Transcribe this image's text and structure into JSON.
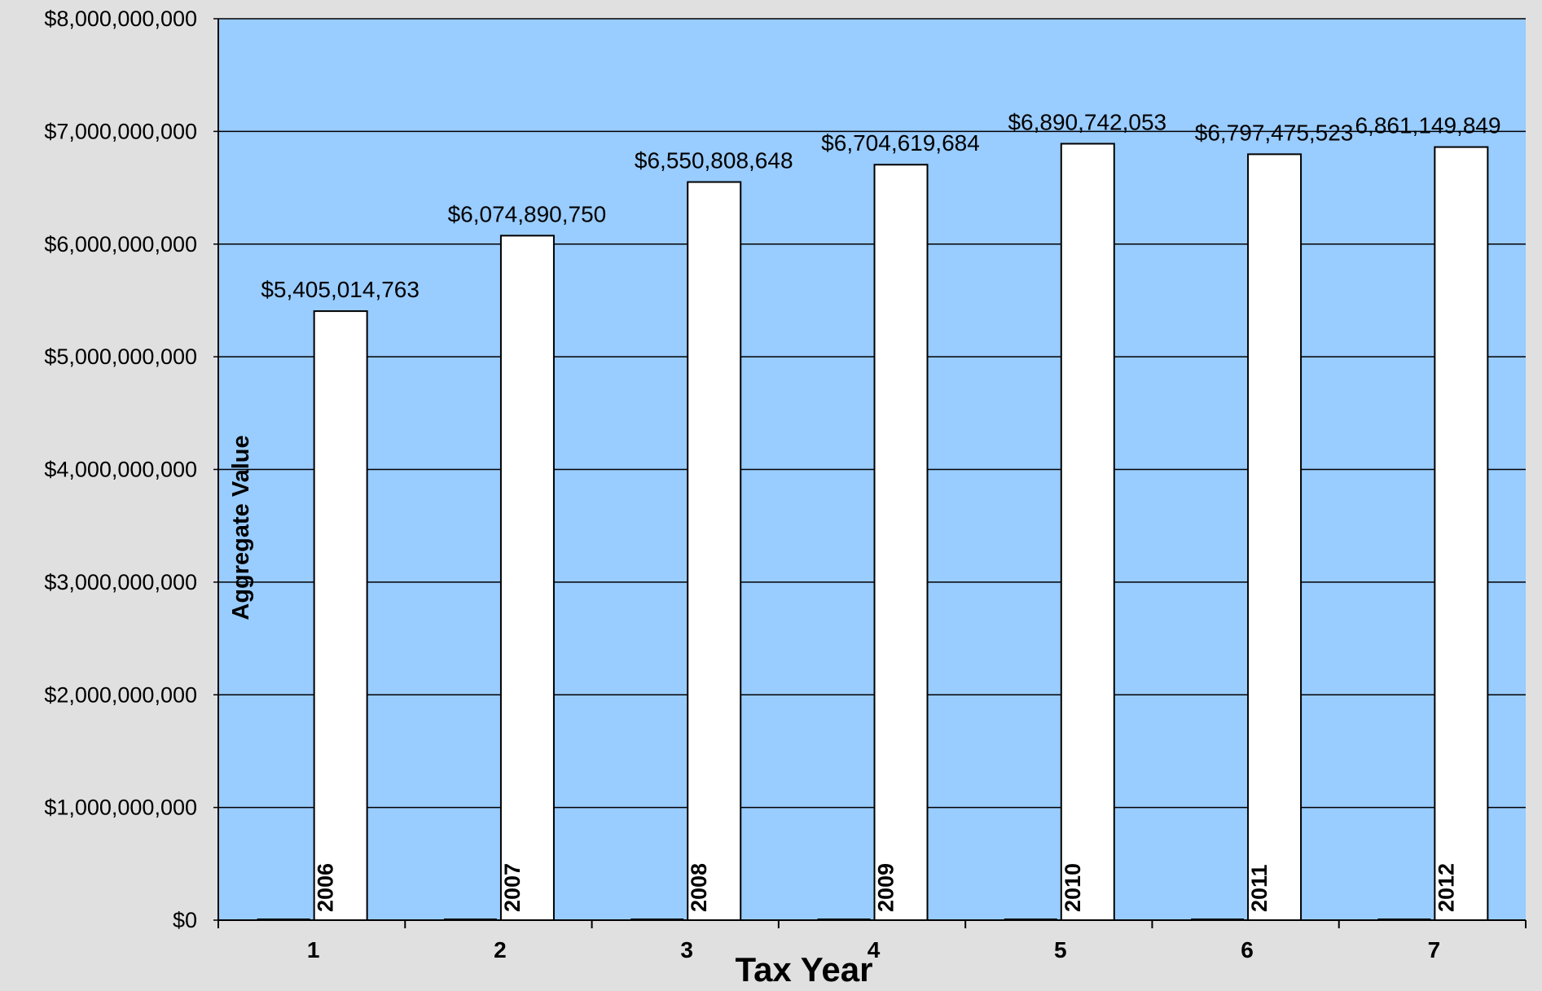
{
  "colors": {
    "page_background": "#e0e0e0",
    "plot_background": "#99ccff",
    "bar_fill": "#ffffff",
    "bar_stroke": "#000000",
    "gridline": "#000000",
    "text": "#000000"
  },
  "chart_data": {
    "type": "bar",
    "title": "",
    "xlabel": "Tax Year",
    "ylabel": "Aggregate Value",
    "categories": [
      "1",
      "2",
      "3",
      "4",
      "5",
      "6",
      "7"
    ],
    "series": [
      {
        "name": "",
        "values": [
          0,
          0,
          0,
          0,
          0,
          0,
          0
        ]
      },
      {
        "name": "",
        "values": [
          5405014763,
          6074890750,
          6550808648,
          6704619684,
          6890742053,
          6797475523,
          6861149849
        ],
        "bar_labels": [
          "2006",
          "2007",
          "2008",
          "2009",
          "2010",
          "2011",
          "2012"
        ],
        "data_labels": [
          "$5,405,014,763",
          "$6,074,890,750",
          "$6,550,808,648",
          "$6,704,619,684",
          "$6,890,742,053",
          "$6,797,475,523",
          "6,861,149,849"
        ]
      }
    ],
    "ylim": [
      0,
      8000000000
    ],
    "y_ticks": [
      0,
      1000000000,
      2000000000,
      3000000000,
      4000000000,
      5000000000,
      6000000000,
      7000000000,
      8000000000
    ],
    "y_tick_labels": [
      "$0",
      "$1,000,000,000",
      "$2,000,000,000",
      "$3,000,000,000",
      "$4,000,000,000",
      "$5,000,000,000",
      "$6,000,000,000",
      "$7,000,000,000",
      "$8,000,000,000"
    ],
    "grid": true,
    "legend": "none"
  }
}
